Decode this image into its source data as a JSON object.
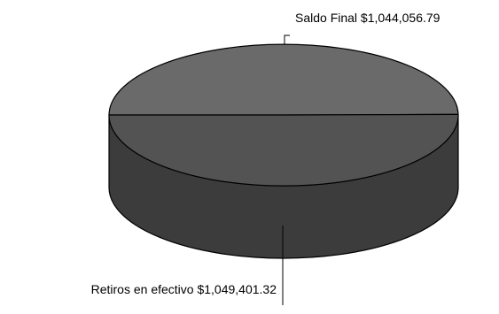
{
  "chart_data": {
    "type": "pie",
    "variant": "3d",
    "title": "",
    "legend": "none",
    "slices": [
      {
        "label": "Saldo Final $1,044,056.79",
        "name": "Saldo Final",
        "value": 1044056.79,
        "color": "#6a6a6a"
      },
      {
        "label": "Retiros en efectivo $1,049,401.32",
        "name": "Retiros en efectivo",
        "value": 1049401.32,
        "color": "#535353"
      }
    ],
    "side_color": "#3c3c3c",
    "edge_color": "#000000"
  }
}
